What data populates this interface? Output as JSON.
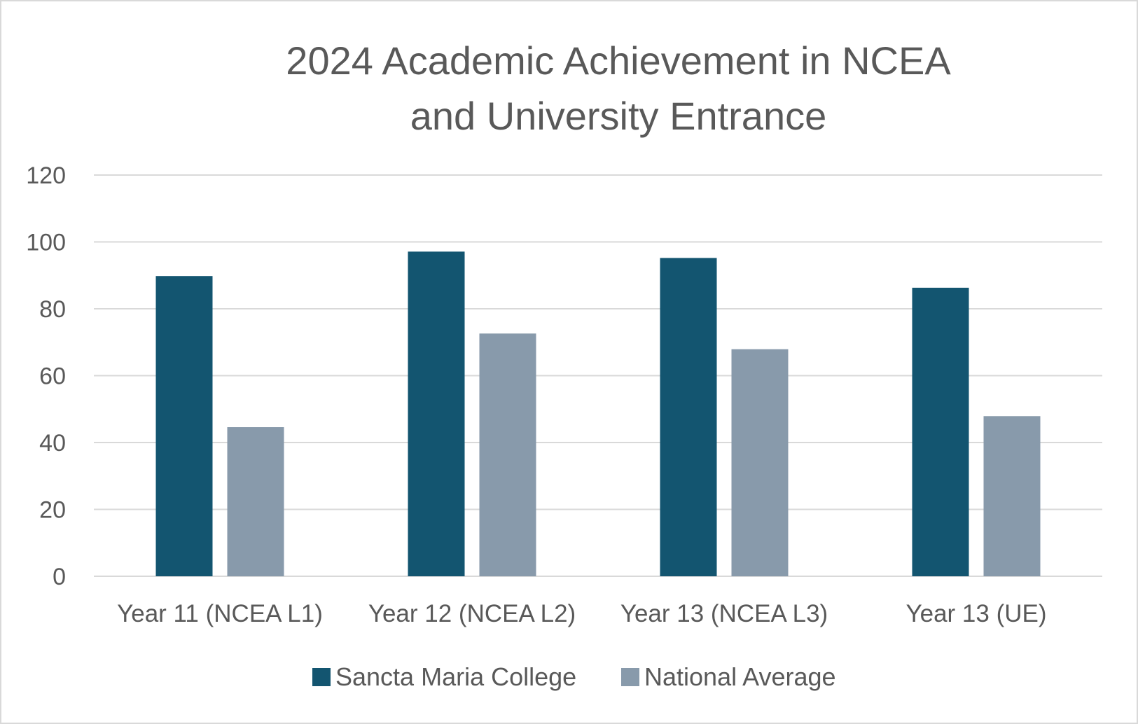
{
  "chart_data": {
    "type": "bar",
    "title_lines": [
      "2024 Academic Achievement in NCEA",
      "and University Entrance"
    ],
    "categories": [
      "Year 11 (NCEA L1)",
      "Year 12 (NCEA L2)",
      "Year 13 (NCEA L3)",
      "Year 13 (UE)"
    ],
    "series": [
      {
        "name": "Sancta Maria College",
        "color": "#135570",
        "values": [
          89.8,
          97.1,
          95.2,
          86.3
        ]
      },
      {
        "name": "National Average",
        "color": "#889aab",
        "values": [
          44.6,
          72.6,
          67.9,
          47.9
        ]
      }
    ],
    "ylim": [
      0,
      120
    ],
    "yticks": [
      "0",
      "20",
      "40",
      "60",
      "80",
      "100",
      "120"
    ],
    "grid": true,
    "legend_position": "bottom"
  }
}
